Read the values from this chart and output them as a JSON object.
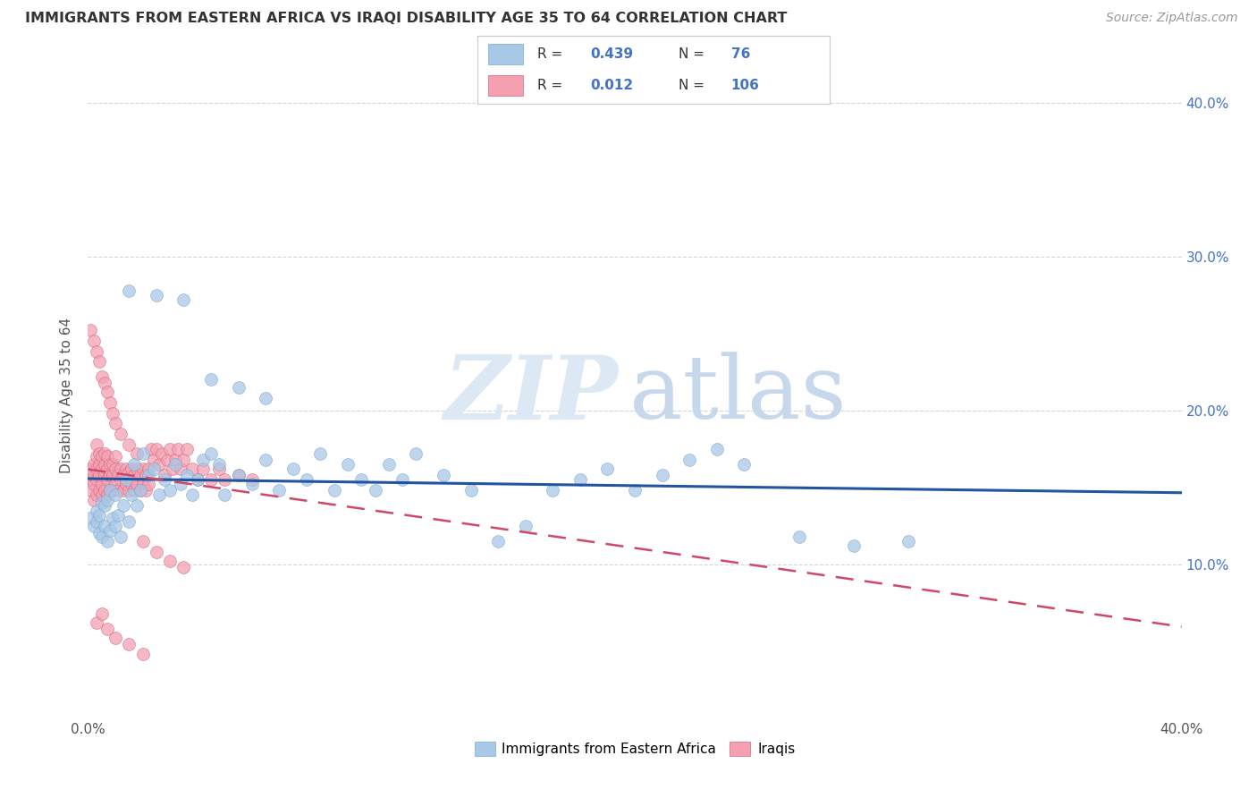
{
  "title": "IMMIGRANTS FROM EASTERN AFRICA VS IRAQI DISABILITY AGE 35 TO 64 CORRELATION CHART",
  "source": "Source: ZipAtlas.com",
  "ylabel": "Disability Age 35 to 64",
  "xlim": [
    0.0,
    0.4
  ],
  "ylim": [
    0.0,
    0.42
  ],
  "blue_R": 0.439,
  "blue_N": 76,
  "pink_R": 0.012,
  "pink_N": 106,
  "blue_color": "#a8c8e8",
  "blue_edge_color": "#7aaac8",
  "blue_line_color": "#2255a0",
  "pink_color": "#f4a0b0",
  "pink_edge_color": "#d06888",
  "pink_line_color": "#d04868",
  "stat_color": "#4472c4",
  "watermark_color1": "#dce8f4",
  "watermark_color2": "#c8d8ec",
  "legend_labels": [
    "Immigrants from Eastern Africa",
    "Iraqis"
  ],
  "blue_x": [
    0.001,
    0.002,
    0.003,
    0.003,
    0.004,
    0.004,
    0.005,
    0.005,
    0.006,
    0.006,
    0.007,
    0.007,
    0.008,
    0.008,
    0.009,
    0.01,
    0.01,
    0.011,
    0.012,
    0.013,
    0.014,
    0.015,
    0.016,
    0.017,
    0.018,
    0.019,
    0.02,
    0.022,
    0.024,
    0.026,
    0.028,
    0.03,
    0.032,
    0.034,
    0.036,
    0.038,
    0.04,
    0.042,
    0.045,
    0.048,
    0.05,
    0.055,
    0.06,
    0.065,
    0.07,
    0.075,
    0.08,
    0.085,
    0.09,
    0.095,
    0.1,
    0.105,
    0.11,
    0.115,
    0.12,
    0.13,
    0.14,
    0.15,
    0.16,
    0.17,
    0.18,
    0.19,
    0.2,
    0.21,
    0.22,
    0.23,
    0.24,
    0.26,
    0.28,
    0.3,
    0.015,
    0.025,
    0.035,
    0.045,
    0.055,
    0.065
  ],
  "blue_y": [
    0.13,
    0.125,
    0.128,
    0.135,
    0.12,
    0.132,
    0.118,
    0.14,
    0.125,
    0.138,
    0.115,
    0.142,
    0.122,
    0.148,
    0.13,
    0.125,
    0.145,
    0.132,
    0.118,
    0.138,
    0.155,
    0.128,
    0.145,
    0.165,
    0.138,
    0.148,
    0.172,
    0.158,
    0.162,
    0.145,
    0.155,
    0.148,
    0.165,
    0.152,
    0.158,
    0.145,
    0.155,
    0.168,
    0.172,
    0.165,
    0.145,
    0.158,
    0.152,
    0.168,
    0.148,
    0.162,
    0.155,
    0.172,
    0.148,
    0.165,
    0.155,
    0.148,
    0.165,
    0.155,
    0.172,
    0.158,
    0.148,
    0.115,
    0.125,
    0.148,
    0.155,
    0.162,
    0.148,
    0.158,
    0.168,
    0.175,
    0.165,
    0.118,
    0.112,
    0.115,
    0.278,
    0.275,
    0.272,
    0.22,
    0.215,
    0.208
  ],
  "pink_x": [
    0.001,
    0.001,
    0.001,
    0.002,
    0.002,
    0.002,
    0.002,
    0.003,
    0.003,
    0.003,
    0.003,
    0.003,
    0.004,
    0.004,
    0.004,
    0.004,
    0.005,
    0.005,
    0.005,
    0.005,
    0.006,
    0.006,
    0.006,
    0.006,
    0.007,
    0.007,
    0.007,
    0.007,
    0.008,
    0.008,
    0.008,
    0.009,
    0.009,
    0.009,
    0.01,
    0.01,
    0.01,
    0.011,
    0.011,
    0.012,
    0.012,
    0.013,
    0.013,
    0.014,
    0.014,
    0.015,
    0.015,
    0.016,
    0.016,
    0.017,
    0.017,
    0.018,
    0.018,
    0.019,
    0.019,
    0.02,
    0.02,
    0.021,
    0.021,
    0.022,
    0.022,
    0.023,
    0.024,
    0.025,
    0.026,
    0.027,
    0.028,
    0.029,
    0.03,
    0.031,
    0.032,
    0.033,
    0.034,
    0.035,
    0.036,
    0.038,
    0.04,
    0.042,
    0.045,
    0.048,
    0.05,
    0.055,
    0.06,
    0.001,
    0.002,
    0.003,
    0.004,
    0.005,
    0.006,
    0.007,
    0.008,
    0.009,
    0.01,
    0.012,
    0.015,
    0.018,
    0.02,
    0.025,
    0.03,
    0.035,
    0.003,
    0.005,
    0.007,
    0.01,
    0.015,
    0.02
  ],
  "pink_y": [
    0.148,
    0.155,
    0.162,
    0.142,
    0.152,
    0.158,
    0.165,
    0.145,
    0.155,
    0.162,
    0.17,
    0.178,
    0.148,
    0.158,
    0.165,
    0.172,
    0.145,
    0.152,
    0.162,
    0.17,
    0.148,
    0.158,
    0.165,
    0.172,
    0.145,
    0.155,
    0.162,
    0.17,
    0.148,
    0.158,
    0.165,
    0.148,
    0.158,
    0.165,
    0.152,
    0.162,
    0.17,
    0.148,
    0.158,
    0.155,
    0.162,
    0.148,
    0.158,
    0.152,
    0.162,
    0.148,
    0.16,
    0.152,
    0.162,
    0.148,
    0.158,
    0.152,
    0.162,
    0.148,
    0.158,
    0.152,
    0.162,
    0.148,
    0.158,
    0.152,
    0.162,
    0.175,
    0.168,
    0.175,
    0.165,
    0.172,
    0.158,
    0.168,
    0.175,
    0.162,
    0.168,
    0.175,
    0.162,
    0.168,
    0.175,
    0.162,
    0.155,
    0.162,
    0.155,
    0.162,
    0.155,
    0.158,
    0.155,
    0.252,
    0.245,
    0.238,
    0.232,
    0.222,
    0.218,
    0.212,
    0.205,
    0.198,
    0.192,
    0.185,
    0.178,
    0.172,
    0.115,
    0.108,
    0.102,
    0.098,
    0.062,
    0.068,
    0.058,
    0.052,
    0.048,
    0.042
  ]
}
